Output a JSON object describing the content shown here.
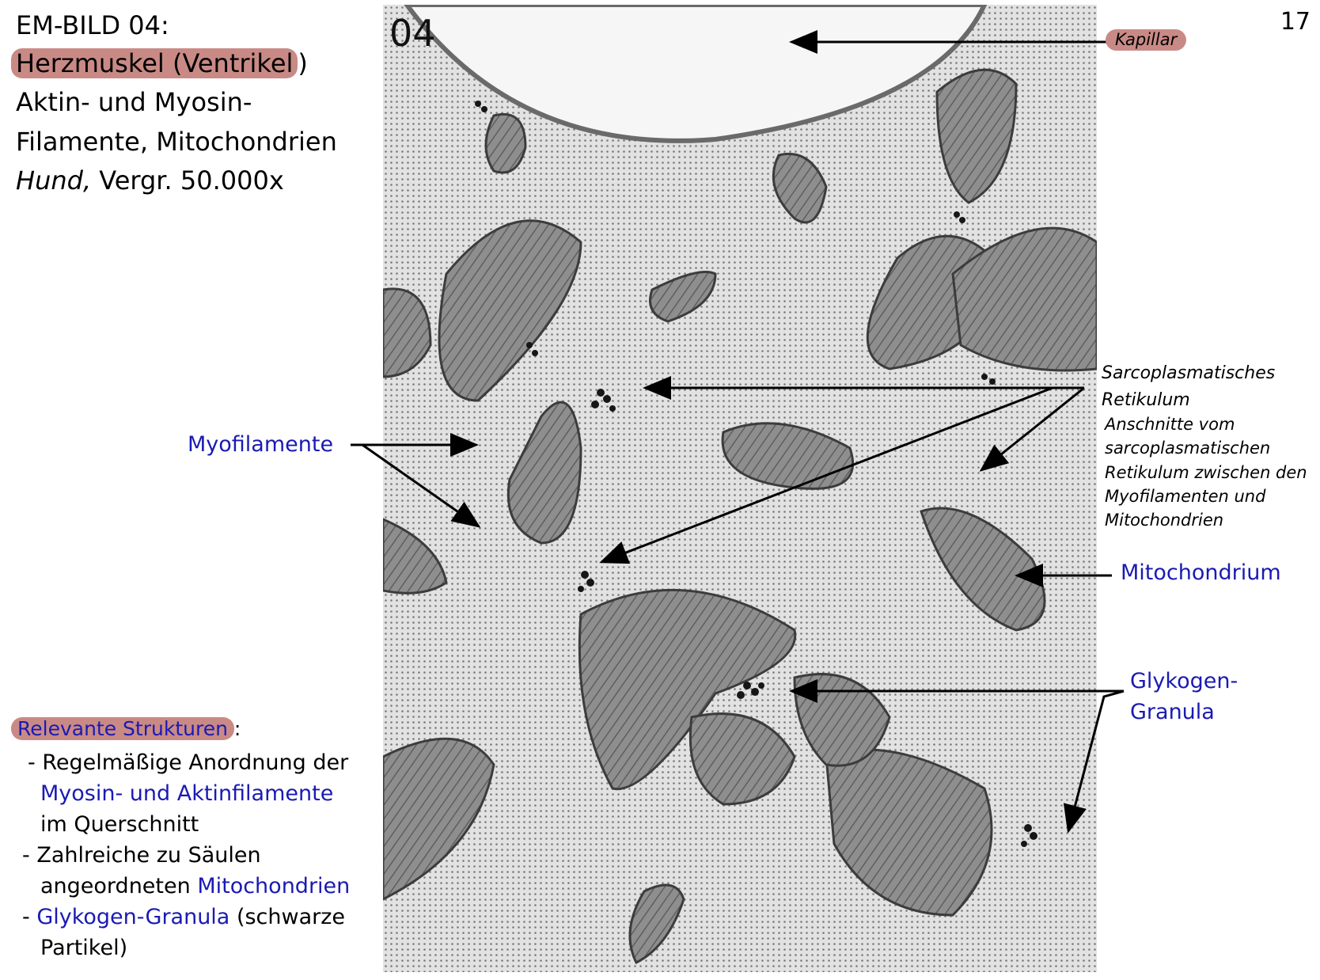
{
  "title": {
    "line1": "EM-BILD 04:",
    "line2_highlight": "Herzmuskel (Ventrikel",
    "line2_tail": ")",
    "line3": "Aktin- und Myosin-",
    "line4": "Filamente, Mitochondrien",
    "line5_italic": "Hund,",
    "line5_rest": " Vergr. 50.000x"
  },
  "page_number": "17",
  "image_number": "04",
  "labels": {
    "kapillar": "Kapillar",
    "sr_line1": "Sarcoplasmatisches",
    "sr_line2": "Retikulum",
    "sr_desc": [
      "Anschnitte vom",
      "sarcoplasmatischen",
      "Retikulum zwischen den",
      "Myofilamenten und",
      "Mitochondrien"
    ],
    "myofilamente": "Myofilamente",
    "mitochondrium": "Mitochondrium",
    "glykogen_line1": "Glykogen-",
    "glykogen_line2": "Granula"
  },
  "relevant": {
    "heading": "Relevante Strukturen",
    "heading_colon": ":",
    "item1_a": "- Regelmäßige Anordnung der",
    "item1_b": "Myosin- und Aktinfilamente",
    "item1_c": "im Querschnitt",
    "item2_a": "- Zahlreiche zu Säulen",
    "item2_b_plain": "angeordneten ",
    "item2_b_blue": "Mitochondrien",
    "item3_dash": "- ",
    "item3_blue": "Glykogen-Granula",
    "item3_plain": " (schwarze",
    "item3_c": "Partikel)"
  },
  "colors": {
    "highlight": "#c98a86",
    "label_blue": "#1a1ab4"
  }
}
